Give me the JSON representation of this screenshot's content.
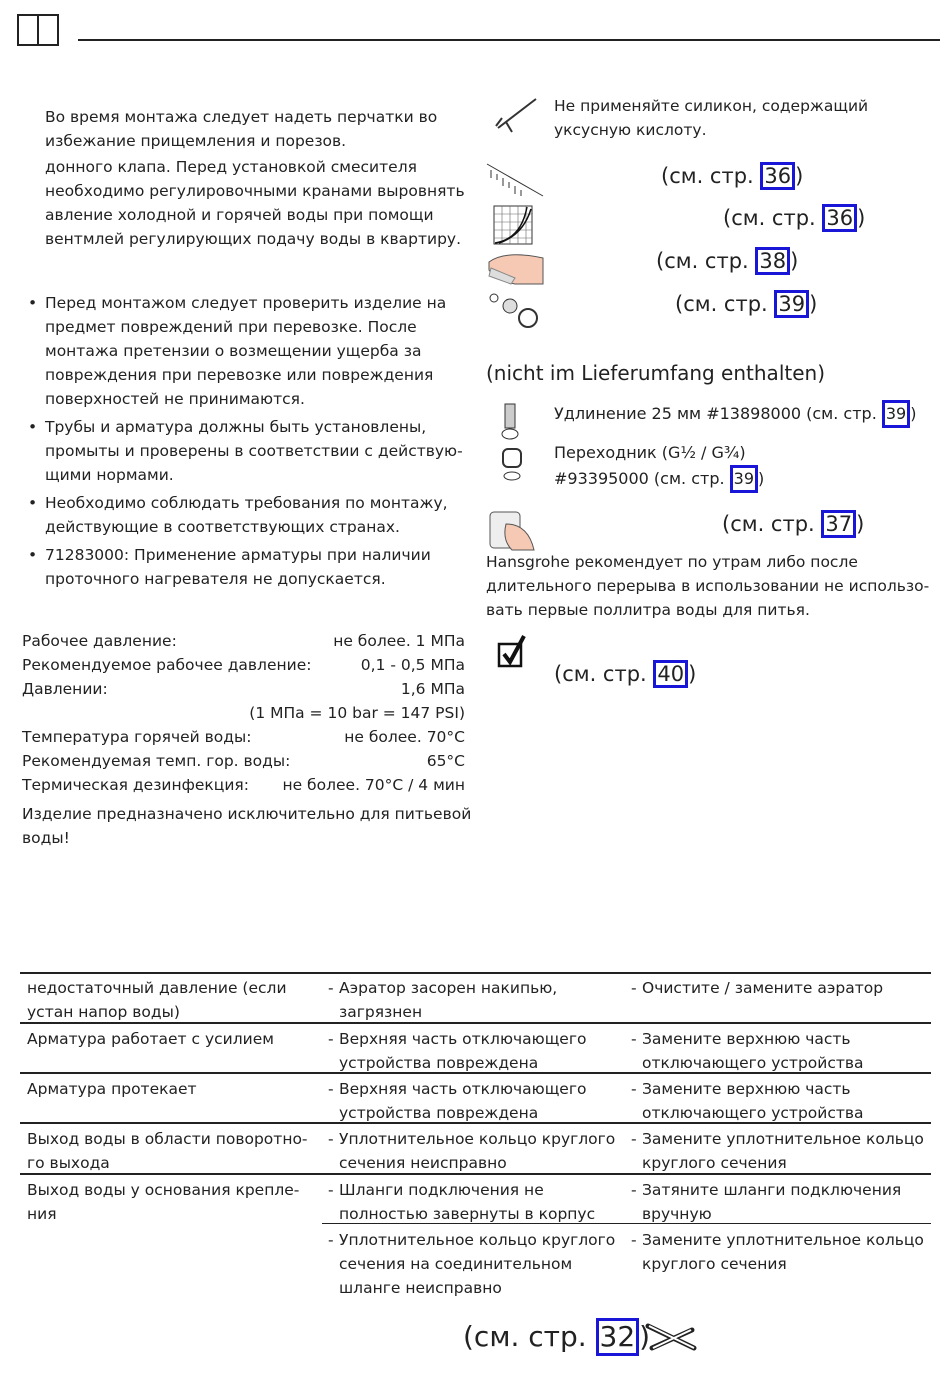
{
  "header": {
    "icon": "open-book-icon"
  },
  "left": {
    "para1": [
      "Во время монтажа следует надеть перчатки во",
      "избежание прищемления и порезов."
    ],
    "para2": [
      "донного клапа. Перед установкой смесителя",
      "необходимо регулировочными кранами выровнять",
      "авление холодной и горячей воды при помощи",
      "вентмлей регулирующих подачу воды в квартиру."
    ],
    "bullets": [
      [
        "Перед монтажом следует проверить изделие на",
        "предмет повреждений при перевозке. После",
        "монтажа претензии о возмещении ущерба за",
        "повреждения при перевозке или повреждения",
        "поверхностей не принимаются."
      ],
      [
        "Трубы и арматура должны быть установлены,",
        "промыты и проверены в соответствии с действую-",
        "щими нормами."
      ],
      [
        "Необходимо соблюдать требования по монтажу,",
        "действующие в соответствующих странах."
      ],
      [
        "71283000: Применение арматуры при наличии",
        "проточного нагревателя не допускается."
      ]
    ],
    "specs": [
      {
        "label": "Рабочее давление:",
        "value": "не более. 1 МПа"
      },
      {
        "label": "Рекомендуемое рабочее давление:",
        "value": "0,1 - 0,5 МПа"
      },
      {
        "label": "Давлении:",
        "value": "1,6 МПа"
      },
      {
        "label": "",
        "value": "(1 МПа = 10 bar = 147 PSI)"
      },
      {
        "label": "Температура горячей воды:",
        "value": "не более. 70°C"
      },
      {
        "label": "Рекомендуемая темп. гор. воды:",
        "value": "65°C"
      },
      {
        "label": "Термическая дезинфекция:",
        "value": "не более. 70°C / 4 мин"
      }
    ],
    "note": [
      "Изделие предназначено исключительно для питьевой",
      "воды!"
    ]
  },
  "right": {
    "silicone": [
      "Не применяйте силикон, содержащий",
      "уксусную кислоту."
    ],
    "ref_prefix": "(см. стр. ",
    "ref_suffix": ")",
    "refs": [
      {
        "icon": "ruler-dimensions-icon",
        "page": "36"
      },
      {
        "icon": "flow-diagram-icon",
        "page": "36"
      },
      {
        "icon": "hand-cleaning-icon",
        "page": "38"
      },
      {
        "icon": "spare-parts-icon",
        "page": "39"
      }
    ],
    "not_included": "(nicht im Lieferumfang enthalten)",
    "extension": {
      "text": "Удлинение 25 мм #13898000 (см. стр. ",
      "page": "39",
      "icon": "extension-icon"
    },
    "adapter": {
      "line1": "Переходник (G½ / G¾)",
      "line2": "#93395000 (см. стр. ",
      "page": "39",
      "icon": "adapter-icon"
    },
    "cleaning": {
      "icon": "hand-operation-icon",
      "page": "37"
    },
    "hansgrohe_note": [
      "Hansgrohe рекомендует по утрам либо после",
      "длительного перерыва в использовании не использо-",
      "вать первые поллитра воды для питья."
    ],
    "check": {
      "icon": "checkbox-checked-icon",
      "page": "40"
    }
  },
  "table": {
    "rows": [
      {
        "problem": [
          "недостаточный давление (если",
          "устан напор воды)"
        ],
        "causes": [
          {
            "cause": [
              "Аэратор засорен накипью,",
              "загрязнен"
            ],
            "remedy": [
              "Очистите / замените аэратор"
            ]
          }
        ]
      },
      {
        "problem": [
          "Арматура работает с усилием"
        ],
        "causes": [
          {
            "cause": [
              "Верхняя часть отключающего",
              "устройства повреждена"
            ],
            "remedy": [
              "Замените верхнюю часть",
              "отключающего устройства"
            ]
          }
        ]
      },
      {
        "problem": [
          "Арматура протекает"
        ],
        "causes": [
          {
            "cause": [
              "Верхняя часть отключающего",
              "устройства повреждена"
            ],
            "remedy": [
              "Замените верхнюю часть",
              "отключающего устройства"
            ]
          }
        ]
      },
      {
        "problem": [
          "Выход воды в области поворотно-",
          "го выхода"
        ],
        "causes": [
          {
            "cause": [
              "Уплотнительное кольцо круглого",
              "сечения неисправно"
            ],
            "remedy": [
              "Замените уплотнительное кольцо",
              "круглого сечения"
            ]
          }
        ]
      },
      {
        "problem": [
          "Выход воды у основания крепле-",
          "ния"
        ],
        "causes": [
          {
            "cause": [
              "Шланги подключения не",
              "полностью завернуты в корпус"
            ],
            "remedy": [
              "Затяните шланги подключения",
              "вручную"
            ]
          },
          {
            "cause": [
              "Уплотнительное кольцо круглого",
              "сечения на соединительном",
              "шланге неисправно"
            ],
            "remedy": [
              "Замените уплотнительное кольцо",
              "круглого сечения"
            ]
          }
        ]
      }
    ]
  },
  "footer": {
    "page": "32",
    "icon": "wrench-screwdriver-icon"
  },
  "colors": {
    "link_box": "#1a16d8",
    "text": "#222222"
  }
}
